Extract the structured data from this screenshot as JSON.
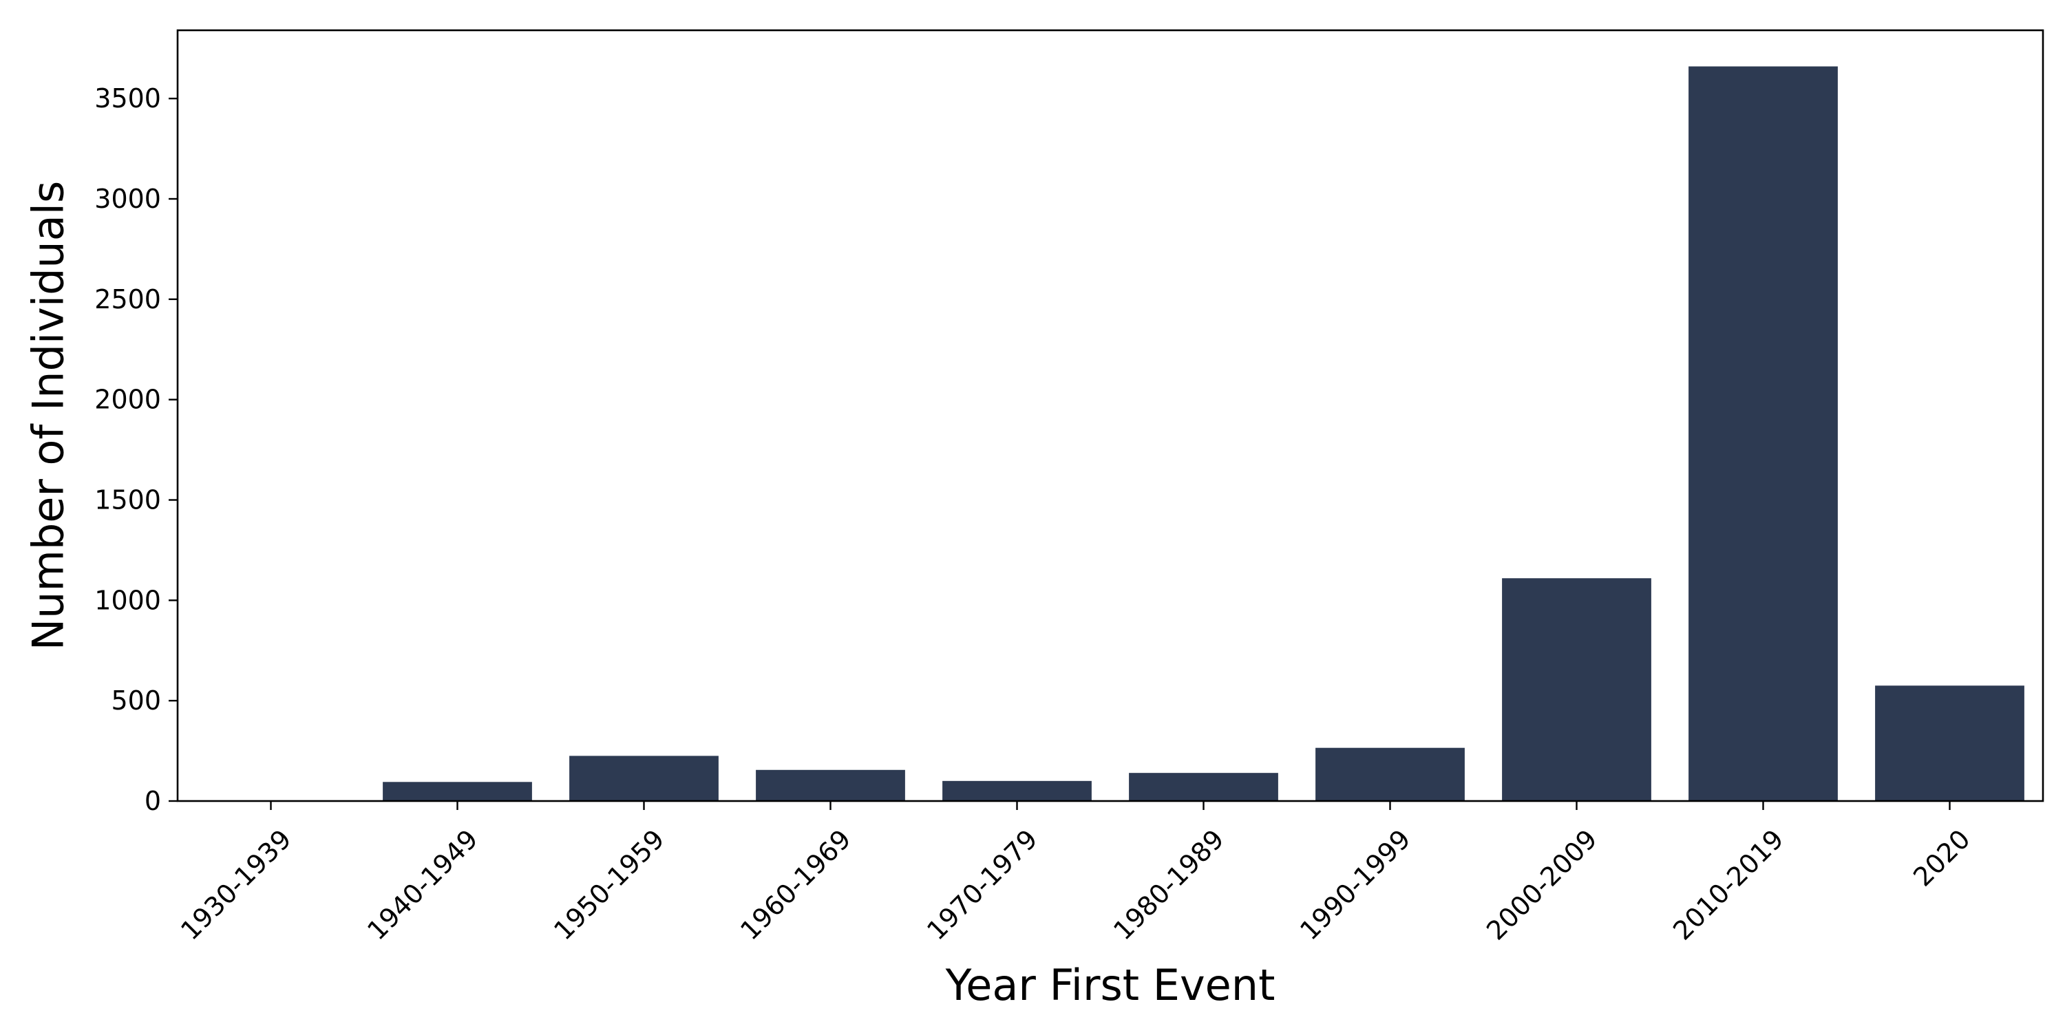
{
  "chart_data": {
    "type": "bar",
    "title": "",
    "xlabel": "Year First Event",
    "ylabel": "Number of Individuals",
    "categories": [
      "1930-1939",
      "1940-1949",
      "1950-1959",
      "1960-1969",
      "1970-1979",
      "1980-1989",
      "1990-1999",
      "2000-2009",
      "2010-2019",
      "2020"
    ],
    "values": [
      3,
      95,
      225,
      155,
      100,
      140,
      265,
      1110,
      3660,
      575
    ],
    "ylim": [
      0,
      3840
    ],
    "yticks": [
      0,
      500,
      1000,
      1500,
      2000,
      2500,
      3000,
      3500
    ],
    "grid": false,
    "legend": "none",
    "bar_color": "#2d3a52"
  }
}
